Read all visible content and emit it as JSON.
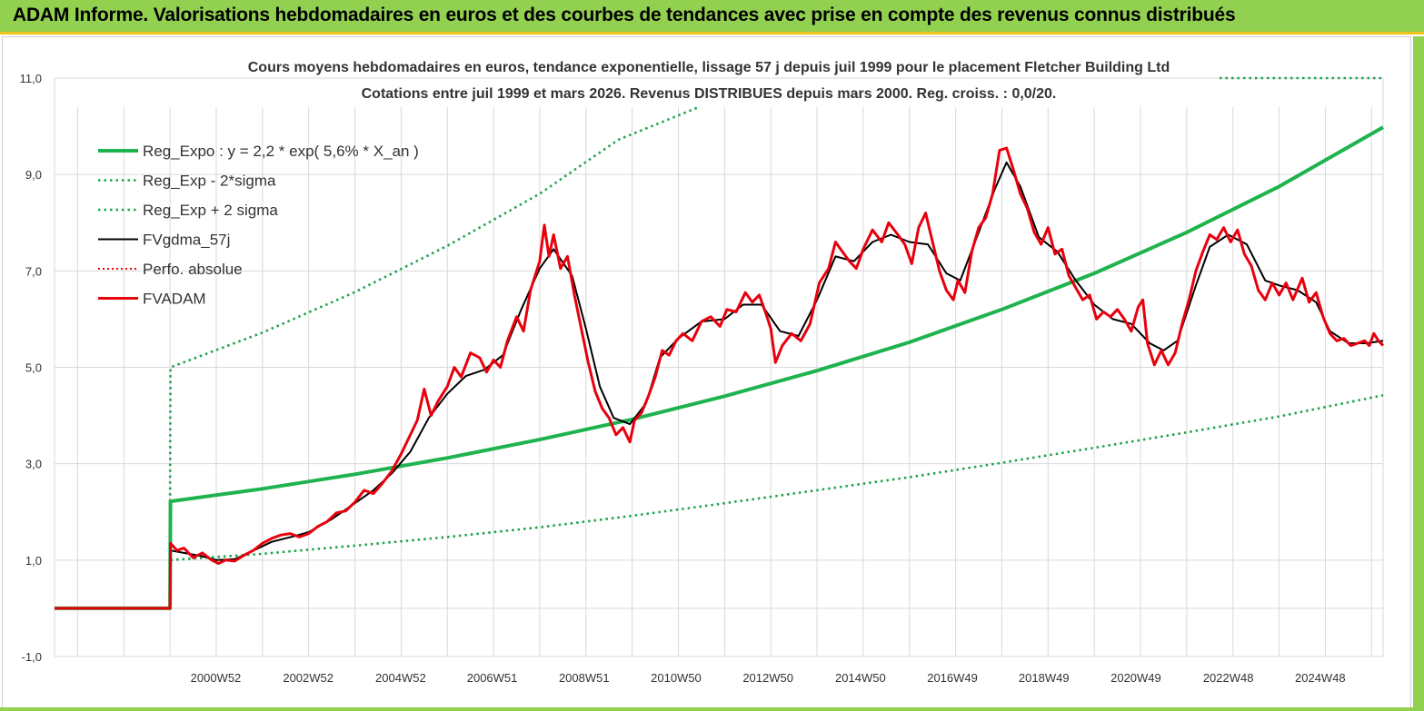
{
  "header": {
    "title": "ADAM Informe. Valorisations hebdomadaires en euros et des courbes de tendances avec prise en compte des revenus connus distribués"
  },
  "colors": {
    "header_bg": "#92d050",
    "reg_expo": "#1fb34f",
    "sigma": "#1fa34a",
    "gdma": "#000000",
    "fvadam": "#e8000d",
    "perfo": "#e8000d"
  },
  "chart_data": {
    "type": "line",
    "title": "Cours moyens hebdomadaires en euros, tendance exponentielle, lissage 57 j depuis juil 1999 pour le placement Fletcher Building Ltd",
    "subtitle": "Cotations entre juil 1999 et mars 2026. Revenus DISTRIBUES depuis mars 2000. Reg. croiss. : 0,0/20.",
    "ylim": [
      -1,
      11
    ],
    "yticks": [
      "-1,0",
      "1,0",
      "3,0",
      "5,0",
      "7,0",
      "9,0",
      "11,0"
    ],
    "yticks_values": [
      -1,
      1,
      3,
      5,
      7,
      9,
      11
    ],
    "xlim": [
      1997.5,
      2026.25
    ],
    "xticks": [
      {
        "label": "2000W52",
        "x": 2000.99
      },
      {
        "label": "2002W52",
        "x": 2002.99
      },
      {
        "label": "2004W52",
        "x": 2004.99
      },
      {
        "label": "2006W51",
        "x": 2006.97
      },
      {
        "label": "2008W51",
        "x": 2008.96
      },
      {
        "label": "2010W50",
        "x": 2010.95
      },
      {
        "label": "2012W50",
        "x": 2012.94
      },
      {
        "label": "2014W50",
        "x": 2014.94
      },
      {
        "label": "2016W49",
        "x": 2016.93
      },
      {
        "label": "2018W49",
        "x": 2018.91
      },
      {
        "label": "2020W49",
        "x": 2020.9
      },
      {
        "label": "2022W48",
        "x": 2022.9
      },
      {
        "label": "2024W48",
        "x": 2024.89
      }
    ],
    "grid": true,
    "legend_position": "top-left",
    "series": [
      {
        "name": "Reg_Expo : y = 2,2 * exp( 5,6% *  X_an )",
        "style": "solid-thick",
        "points": [
          [
            1997.5,
            0
          ],
          [
            2000.0,
            0
          ],
          [
            2000.01,
            2.22
          ],
          [
            2002,
            2.48
          ],
          [
            2004,
            2.78
          ],
          [
            2006,
            3.12
          ],
          [
            2008,
            3.5
          ],
          [
            2010,
            3.92
          ],
          [
            2012,
            4.4
          ],
          [
            2014,
            4.93
          ],
          [
            2016,
            5.52
          ],
          [
            2018,
            6.2
          ],
          [
            2020,
            6.95
          ],
          [
            2022,
            7.8
          ],
          [
            2024,
            8.75
          ],
          [
            2026.25,
            9.98
          ]
        ]
      },
      {
        "name": "Reg_Exp - 2*sigma",
        "style": "dotted",
        "points": [
          [
            2000.01,
            1.0
          ],
          [
            2002,
            1.13
          ],
          [
            2004,
            1.3
          ],
          [
            2006,
            1.48
          ],
          [
            2008,
            1.68
          ],
          [
            2010,
            1.92
          ],
          [
            2012,
            2.18
          ],
          [
            2014,
            2.45
          ],
          [
            2016,
            2.72
          ],
          [
            2018,
            3.02
          ],
          [
            2020,
            3.33
          ],
          [
            2022,
            3.65
          ],
          [
            2024,
            3.98
          ],
          [
            2026.25,
            4.42
          ]
        ]
      },
      {
        "name": "Reg_Exp + 2 sigma",
        "style": "dotted",
        "points": [
          [
            2000.0,
            2.22
          ],
          [
            2000.01,
            5.0
          ],
          [
            2002,
            5.72
          ],
          [
            2004,
            6.56
          ],
          [
            2006,
            7.52
          ],
          [
            2008,
            8.6
          ],
          [
            2009.7,
            9.72
          ],
          [
            2011.45,
            10.4
          ]
        ]
      },
      {
        "name": "FVgdma_57j",
        "style": "solid-thin",
        "points": [
          [
            1997.5,
            0
          ],
          [
            2000.0,
            0
          ],
          [
            2000.01,
            1.2
          ],
          [
            2000.3,
            1.15
          ],
          [
            2000.7,
            1.08
          ],
          [
            2001.0,
            1.0
          ],
          [
            2001.4,
            1.02
          ],
          [
            2001.7,
            1.15
          ],
          [
            2002.2,
            1.38
          ],
          [
            2002.7,
            1.5
          ],
          [
            2003.0,
            1.58
          ],
          [
            2003.5,
            1.85
          ],
          [
            2004.0,
            2.18
          ],
          [
            2004.4,
            2.45
          ],
          [
            2004.8,
            2.8
          ],
          [
            2005.2,
            3.25
          ],
          [
            2005.6,
            3.95
          ],
          [
            2006.0,
            4.45
          ],
          [
            2006.4,
            4.82
          ],
          [
            2006.8,
            4.95
          ],
          [
            2007.2,
            5.25
          ],
          [
            2007.6,
            6.2
          ],
          [
            2008.0,
            7.05
          ],
          [
            2008.3,
            7.45
          ],
          [
            2008.7,
            6.9
          ],
          [
            2009.0,
            5.8
          ],
          [
            2009.3,
            4.6
          ],
          [
            2009.6,
            3.95
          ],
          [
            2009.95,
            3.82
          ],
          [
            2010.3,
            4.25
          ],
          [
            2010.6,
            5.2
          ],
          [
            2011.0,
            5.6
          ],
          [
            2011.5,
            5.95
          ],
          [
            2012.0,
            6.0
          ],
          [
            2012.4,
            6.3
          ],
          [
            2012.8,
            6.3
          ],
          [
            2013.2,
            5.75
          ],
          [
            2013.6,
            5.65
          ],
          [
            2014.0,
            6.4
          ],
          [
            2014.4,
            7.3
          ],
          [
            2014.8,
            7.2
          ],
          [
            2015.2,
            7.6
          ],
          [
            2015.6,
            7.75
          ],
          [
            2016.0,
            7.6
          ],
          [
            2016.4,
            7.55
          ],
          [
            2016.8,
            6.95
          ],
          [
            2017.1,
            6.8
          ],
          [
            2017.5,
            7.8
          ],
          [
            2017.85,
            8.7
          ],
          [
            2018.1,
            9.25
          ],
          [
            2018.4,
            8.75
          ],
          [
            2018.8,
            7.7
          ],
          [
            2019.2,
            7.4
          ],
          [
            2019.6,
            6.8
          ],
          [
            2020.0,
            6.3
          ],
          [
            2020.4,
            6.0
          ],
          [
            2020.8,
            5.9
          ],
          [
            2021.2,
            5.5
          ],
          [
            2021.5,
            5.35
          ],
          [
            2021.8,
            5.55
          ],
          [
            2022.2,
            6.7
          ],
          [
            2022.5,
            7.5
          ],
          [
            2022.9,
            7.75
          ],
          [
            2023.3,
            7.55
          ],
          [
            2023.7,
            6.8
          ],
          [
            2024.0,
            6.7
          ],
          [
            2024.4,
            6.6
          ],
          [
            2024.8,
            6.35
          ],
          [
            2025.1,
            5.75
          ],
          [
            2025.5,
            5.5
          ],
          [
            2025.9,
            5.5
          ],
          [
            2026.25,
            5.55
          ]
        ]
      },
      {
        "name": "Perfo. absolue",
        "style": "dotted",
        "points": []
      },
      {
        "name": "FVADAM",
        "style": "solid-thick",
        "points": [
          [
            1997.5,
            0
          ],
          [
            2000.0,
            0
          ],
          [
            2000.01,
            1.35
          ],
          [
            2000.15,
            1.2
          ],
          [
            2000.3,
            1.25
          ],
          [
            2000.5,
            1.05
          ],
          [
            2000.7,
            1.15
          ],
          [
            2000.9,
            1.0
          ],
          [
            2001.05,
            0.93
          ],
          [
            2001.2,
            1.0
          ],
          [
            2001.4,
            0.98
          ],
          [
            2001.6,
            1.1
          ],
          [
            2001.8,
            1.2
          ],
          [
            2002.0,
            1.35
          ],
          [
            2002.2,
            1.45
          ],
          [
            2002.4,
            1.52
          ],
          [
            2002.6,
            1.55
          ],
          [
            2002.8,
            1.48
          ],
          [
            2003.0,
            1.55
          ],
          [
            2003.2,
            1.7
          ],
          [
            2003.4,
            1.8
          ],
          [
            2003.6,
            1.98
          ],
          [
            2003.8,
            2.02
          ],
          [
            2004.0,
            2.2
          ],
          [
            2004.2,
            2.45
          ],
          [
            2004.4,
            2.38
          ],
          [
            2004.6,
            2.6
          ],
          [
            2004.8,
            2.85
          ],
          [
            2005.0,
            3.2
          ],
          [
            2005.15,
            3.5
          ],
          [
            2005.35,
            3.9
          ],
          [
            2005.5,
            4.55
          ],
          [
            2005.65,
            4.0
          ],
          [
            2005.8,
            4.3
          ],
          [
            2006.0,
            4.6
          ],
          [
            2006.15,
            5.0
          ],
          [
            2006.3,
            4.8
          ],
          [
            2006.5,
            5.3
          ],
          [
            2006.7,
            5.2
          ],
          [
            2006.85,
            4.9
          ],
          [
            2007.0,
            5.15
          ],
          [
            2007.15,
            5.0
          ],
          [
            2007.3,
            5.55
          ],
          [
            2007.5,
            6.05
          ],
          [
            2007.65,
            5.75
          ],
          [
            2007.8,
            6.6
          ],
          [
            2008.0,
            7.2
          ],
          [
            2008.1,
            7.95
          ],
          [
            2008.2,
            7.3
          ],
          [
            2008.3,
            7.75
          ],
          [
            2008.45,
            7.05
          ],
          [
            2008.6,
            7.3
          ],
          [
            2008.75,
            6.5
          ],
          [
            2008.9,
            5.8
          ],
          [
            2009.05,
            5.1
          ],
          [
            2009.2,
            4.5
          ],
          [
            2009.35,
            4.15
          ],
          [
            2009.5,
            3.95
          ],
          [
            2009.65,
            3.6
          ],
          [
            2009.8,
            3.75
          ],
          [
            2009.95,
            3.45
          ],
          [
            2010.05,
            3.9
          ],
          [
            2010.2,
            4.05
          ],
          [
            2010.35,
            4.4
          ],
          [
            2010.5,
            4.8
          ],
          [
            2010.65,
            5.35
          ],
          [
            2010.8,
            5.25
          ],
          [
            2010.95,
            5.55
          ],
          [
            2011.1,
            5.7
          ],
          [
            2011.3,
            5.55
          ],
          [
            2011.5,
            5.95
          ],
          [
            2011.7,
            6.05
          ],
          [
            2011.9,
            5.85
          ],
          [
            2012.05,
            6.2
          ],
          [
            2012.25,
            6.15
          ],
          [
            2012.45,
            6.55
          ],
          [
            2012.6,
            6.35
          ],
          [
            2012.75,
            6.5
          ],
          [
            2012.9,
            6.1
          ],
          [
            2013.0,
            5.8
          ],
          [
            2013.1,
            5.1
          ],
          [
            2013.25,
            5.45
          ],
          [
            2013.45,
            5.7
          ],
          [
            2013.65,
            5.55
          ],
          [
            2013.85,
            5.9
          ],
          [
            2014.05,
            6.75
          ],
          [
            2014.25,
            7.05
          ],
          [
            2014.4,
            7.6
          ],
          [
            2014.55,
            7.4
          ],
          [
            2014.7,
            7.2
          ],
          [
            2014.85,
            7.05
          ],
          [
            2015.0,
            7.45
          ],
          [
            2015.2,
            7.85
          ],
          [
            2015.4,
            7.6
          ],
          [
            2015.55,
            8.0
          ],
          [
            2015.75,
            7.75
          ],
          [
            2015.9,
            7.55
          ],
          [
            2016.05,
            7.15
          ],
          [
            2016.2,
            7.9
          ],
          [
            2016.35,
            8.2
          ],
          [
            2016.5,
            7.6
          ],
          [
            2016.65,
            7.0
          ],
          [
            2016.8,
            6.6
          ],
          [
            2016.95,
            6.4
          ],
          [
            2017.05,
            6.8
          ],
          [
            2017.2,
            6.55
          ],
          [
            2017.35,
            7.4
          ],
          [
            2017.5,
            7.9
          ],
          [
            2017.65,
            8.1
          ],
          [
            2017.8,
            8.6
          ],
          [
            2017.95,
            9.5
          ],
          [
            2018.1,
            9.55
          ],
          [
            2018.25,
            9.1
          ],
          [
            2018.4,
            8.6
          ],
          [
            2018.55,
            8.3
          ],
          [
            2018.7,
            7.8
          ],
          [
            2018.85,
            7.55
          ],
          [
            2019.0,
            7.9
          ],
          [
            2019.15,
            7.35
          ],
          [
            2019.3,
            7.45
          ],
          [
            2019.45,
            6.9
          ],
          [
            2019.6,
            6.65
          ],
          [
            2019.75,
            6.4
          ],
          [
            2019.9,
            6.5
          ],
          [
            2020.05,
            6.0
          ],
          [
            2020.2,
            6.15
          ],
          [
            2020.35,
            6.05
          ],
          [
            2020.5,
            6.2
          ],
          [
            2020.65,
            6.0
          ],
          [
            2020.8,
            5.75
          ],
          [
            2020.95,
            6.25
          ],
          [
            2021.05,
            6.4
          ],
          [
            2021.15,
            5.5
          ],
          [
            2021.3,
            5.05
          ],
          [
            2021.45,
            5.35
          ],
          [
            2021.6,
            5.05
          ],
          [
            2021.75,
            5.3
          ],
          [
            2021.9,
            5.9
          ],
          [
            2022.05,
            6.4
          ],
          [
            2022.2,
            7.0
          ],
          [
            2022.35,
            7.4
          ],
          [
            2022.5,
            7.75
          ],
          [
            2022.65,
            7.65
          ],
          [
            2022.8,
            7.9
          ],
          [
            2022.95,
            7.6
          ],
          [
            2023.1,
            7.85
          ],
          [
            2023.25,
            7.35
          ],
          [
            2023.4,
            7.1
          ],
          [
            2023.55,
            6.6
          ],
          [
            2023.7,
            6.4
          ],
          [
            2023.85,
            6.75
          ],
          [
            2024.0,
            6.5
          ],
          [
            2024.15,
            6.75
          ],
          [
            2024.3,
            6.4
          ],
          [
            2024.5,
            6.85
          ],
          [
            2024.65,
            6.35
          ],
          [
            2024.8,
            6.55
          ],
          [
            2024.95,
            6.05
          ],
          [
            2025.1,
            5.7
          ],
          [
            2025.25,
            5.55
          ],
          [
            2025.4,
            5.6
          ],
          [
            2025.55,
            5.45
          ],
          [
            2025.7,
            5.5
          ],
          [
            2025.85,
            5.55
          ],
          [
            2025.95,
            5.45
          ],
          [
            2026.05,
            5.7
          ],
          [
            2026.15,
            5.55
          ],
          [
            2026.25,
            5.45
          ]
        ]
      }
    ]
  }
}
